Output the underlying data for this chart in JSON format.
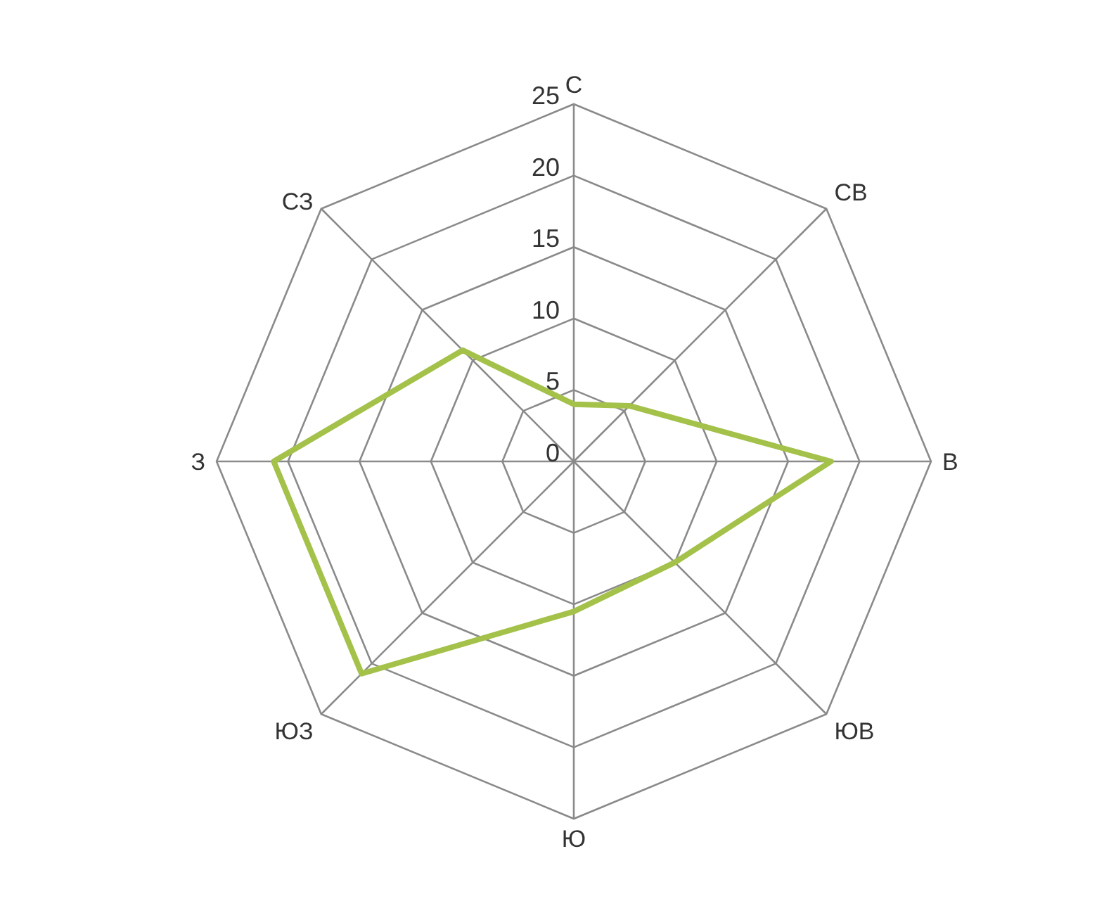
{
  "chart_data": {
    "type": "radar",
    "categories": [
      "С",
      "СВ",
      "В",
      "ЮВ",
      "Ю",
      "ЮЗ",
      "З",
      "СЗ"
    ],
    "series": [
      {
        "color": "#a4c14a",
        "values": [
          4,
          5.5,
          18,
          10,
          10.5,
          21,
          21,
          11
        ]
      }
    ],
    "ylim": [
      0,
      25
    ],
    "yticks": [
      0,
      5,
      10,
      15,
      20,
      25
    ],
    "grid": true,
    "legend": false,
    "marker": "none"
  }
}
